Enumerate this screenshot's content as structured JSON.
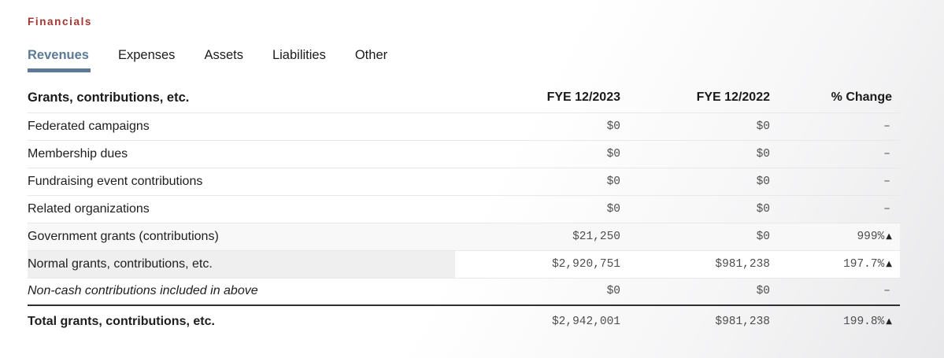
{
  "section": {
    "heading": "Financials"
  },
  "tabs": [
    {
      "label": "Revenues",
      "active": true
    },
    {
      "label": "Expenses",
      "active": false
    },
    {
      "label": "Assets",
      "active": false
    },
    {
      "label": "Liabilities",
      "active": false
    },
    {
      "label": "Other",
      "active": false
    }
  ],
  "table": {
    "title": "Grants, contributions, etc.",
    "columns": [
      "FYE 12/2023",
      "FYE 12/2022",
      "% Change"
    ],
    "rows": [
      {
        "label": "Federated campaigns",
        "fye_2023": "$0",
        "fye_2022": "$0",
        "change": "–",
        "arrow": ""
      },
      {
        "label": "Membership dues",
        "fye_2023": "$0",
        "fye_2022": "$0",
        "change": "–",
        "arrow": ""
      },
      {
        "label": "Fundraising event contributions",
        "fye_2023": "$0",
        "fye_2022": "$0",
        "change": "–",
        "arrow": ""
      },
      {
        "label": "Related organizations",
        "fye_2023": "$0",
        "fye_2022": "$0",
        "change": "–",
        "arrow": ""
      },
      {
        "label": "Government grants (contributions)",
        "fye_2023": "$21,250",
        "fye_2022": "$0",
        "change": "999%",
        "arrow": "▲"
      },
      {
        "label": "Normal grants, contributions, etc.",
        "fye_2023": "$2,920,751",
        "fye_2022": "$981,238",
        "change": "197.7%",
        "arrow": "▲"
      },
      {
        "label": "Non-cash contributions included in above",
        "fye_2023": "$0",
        "fye_2022": "$0",
        "change": "–",
        "arrow": ""
      }
    ],
    "total": {
      "label": "Total grants, contributions, etc.",
      "fye_2023": "$2,942,001",
      "fye_2022": "$981,238",
      "change": "199.8%",
      "arrow": "▲"
    }
  },
  "colors": {
    "heading_red": "#A2362E",
    "active_tab": "#5C7A95",
    "row_highlight": "#EFEFEF",
    "row_highlight_subtle": "#F8F8F8",
    "total_border": "#2F2F2F"
  }
}
